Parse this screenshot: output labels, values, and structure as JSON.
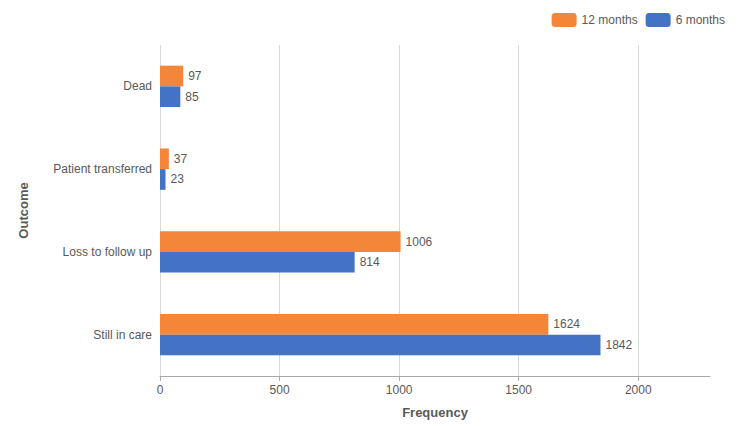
{
  "chart_data": {
    "type": "bar",
    "orientation": "horizontal",
    "categories": [
      "Still in care",
      "Loss to follow up",
      "Patient transferred",
      "Dead"
    ],
    "series": [
      {
        "name": "12 months",
        "color": "#F4863A",
        "values": [
          1624,
          1006,
          37,
          97
        ]
      },
      {
        "name": "6 months",
        "color": "#4472C4",
        "values": [
          1842,
          814,
          23,
          85
        ]
      }
    ],
    "xlabel": "Frequency",
    "ylabel": "Outcome",
    "xlim": [
      0,
      2300
    ],
    "xticks": [
      0,
      500,
      1000,
      1500,
      2000
    ],
    "grid": true,
    "legend": "upper right",
    "data_labels": true
  }
}
